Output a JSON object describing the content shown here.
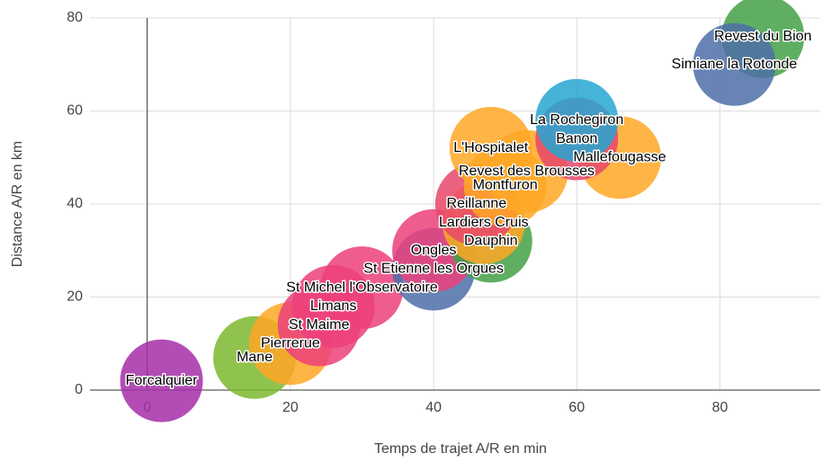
{
  "chart_data": {
    "type": "bubble",
    "x_label": "Temps de trajet A/R en min",
    "y_label": "Distance A/R en km",
    "labels": [
      "Forcalquier",
      "Mane",
      "Pierrerue",
      "St Maime",
      "Limans",
      "St Michel l'Observatoire",
      "St Etienne les Orgues",
      "Ongles",
      "Dauphin",
      "Lardiers Cruis",
      "Reillanne",
      "Montfuron",
      "Revest des Brousses",
      "L'Hospitalet",
      "Mallefougasse",
      "Banon",
      "La Rochegiron",
      "Revest du Bion",
      "Simiane la Rotonde"
    ],
    "x": [
      2,
      15,
      20,
      24,
      26,
      30,
      40,
      40,
      48,
      47,
      46,
      50,
      53,
      48,
      66,
      60,
      60,
      86,
      82
    ],
    "values": [
      2,
      7,
      10,
      14,
      18,
      22,
      26,
      30,
      32,
      36,
      40,
      44,
      47,
      52,
      50,
      54,
      58,
      76,
      70
    ],
    "colors": [
      "#a62ea8",
      "#7cb82f",
      "#ffa726",
      "#ec407a",
      "#ec407a",
      "#ec407a",
      "#4e6fa8",
      "#ec407a",
      "#43a047",
      "#ffa726",
      "#e8466b",
      "#ffa726",
      "#ffa726",
      "#ffa726",
      "#ffa726",
      "#e8466b",
      "#26a6d1",
      "#43a047",
      "#4e6fa8"
    ],
    "xlim": [
      -8,
      94
    ],
    "ylim": [
      0,
      80
    ],
    "xticks": [
      0,
      20,
      40,
      60,
      80
    ],
    "yticks": [
      0,
      20,
      40,
      60,
      80
    ],
    "grid": true
  }
}
